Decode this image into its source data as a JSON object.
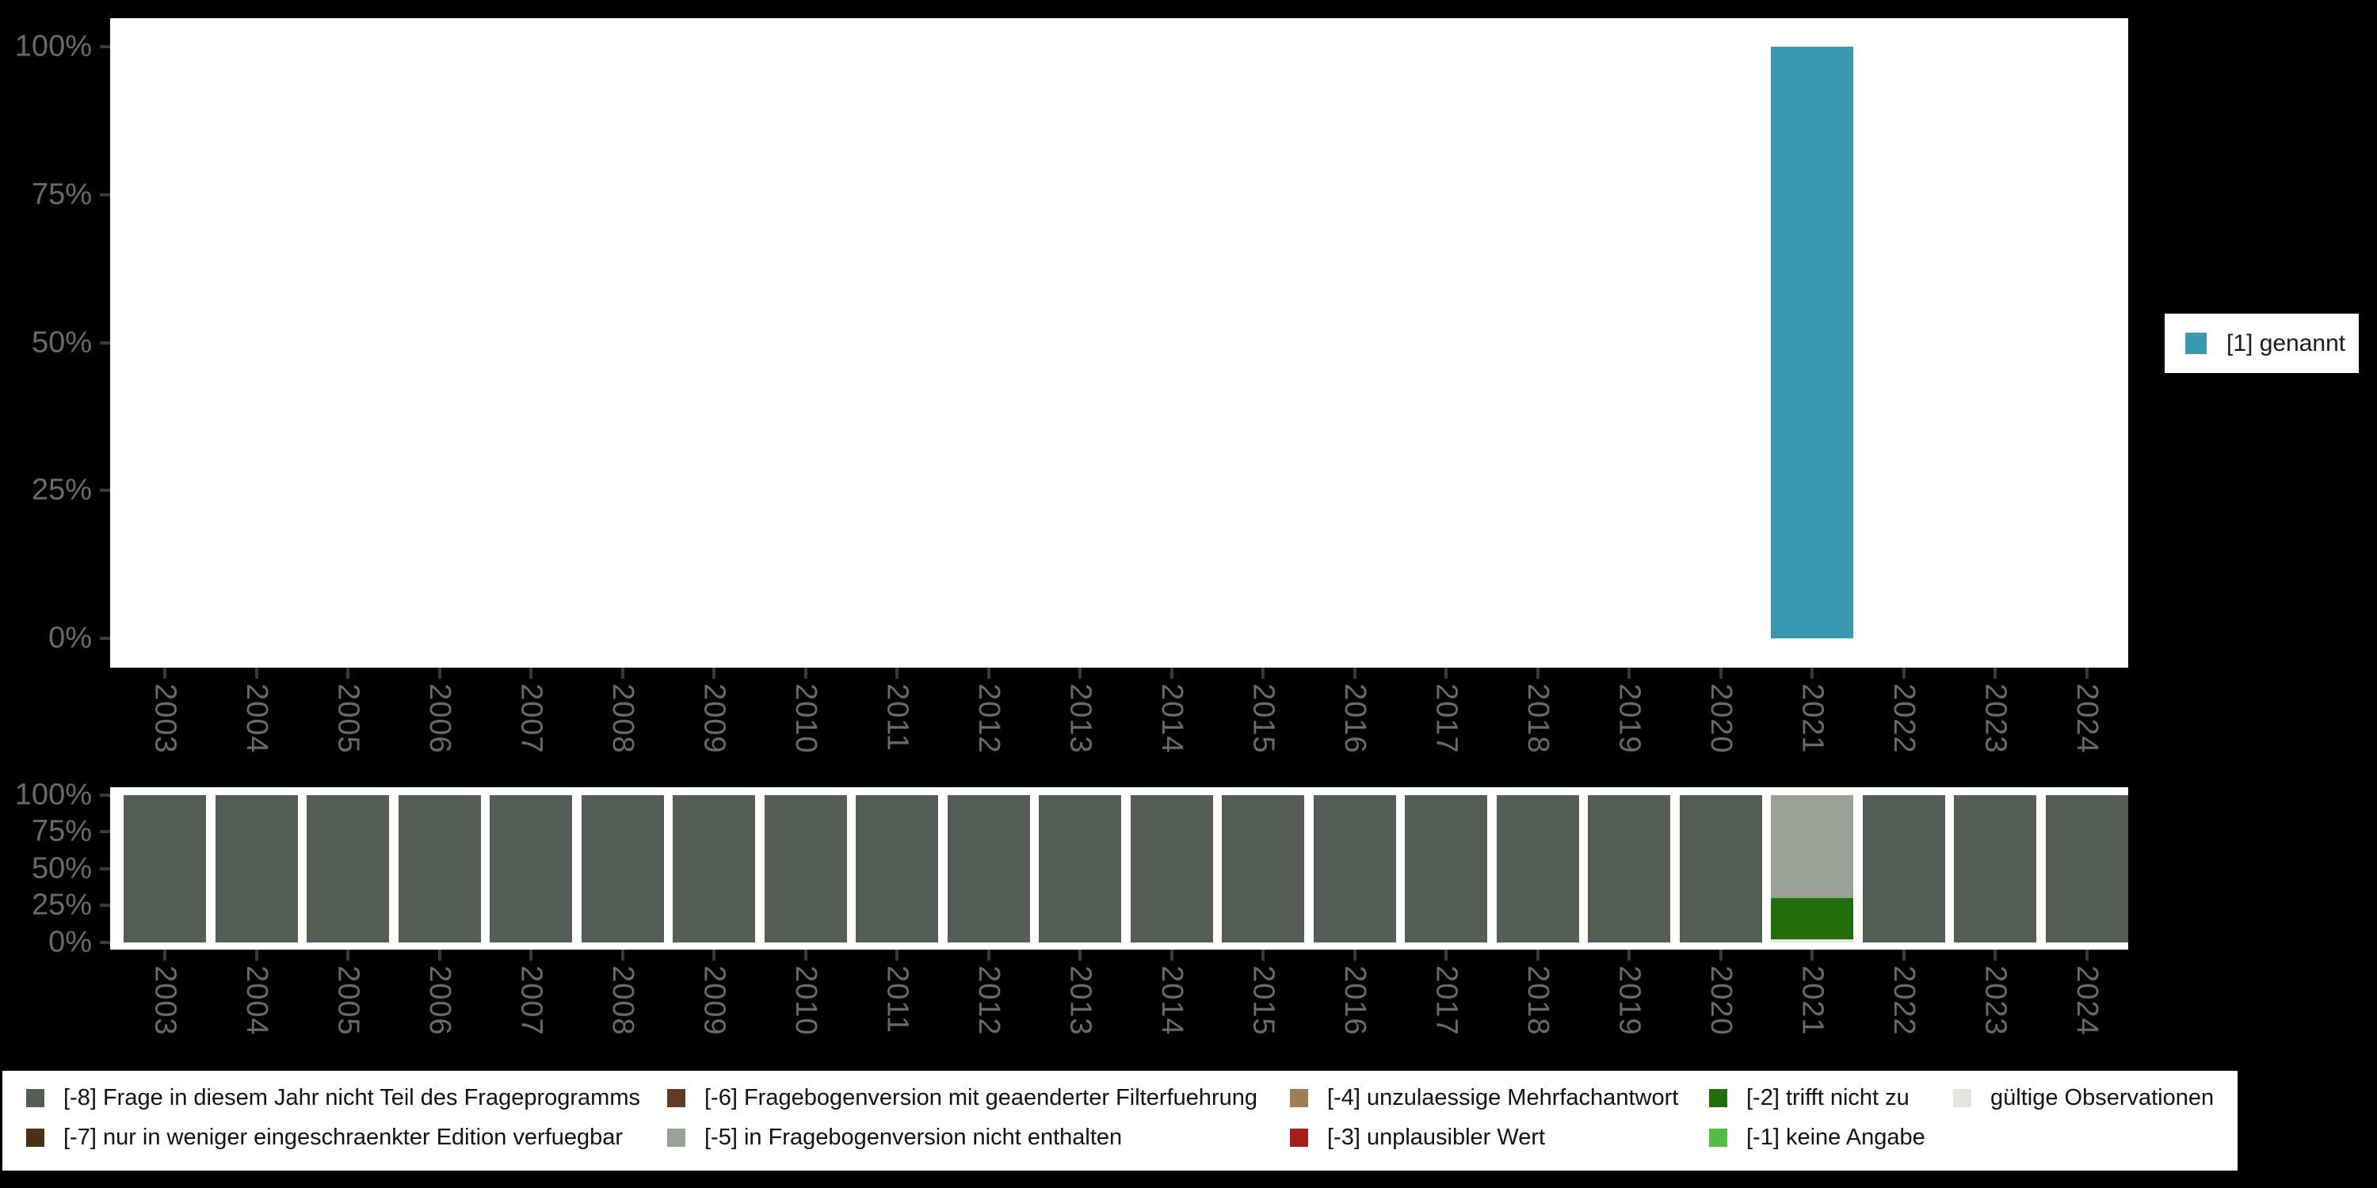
{
  "app": {
    "background": "#000000",
    "panel_bg": "#FFFFFF"
  },
  "axis": {
    "text_color": "#6a6a6a",
    "tick_color": "#3a3a3a"
  },
  "right_legend": {
    "label": "[1] genannt",
    "swatch_color": "#3A99B1"
  },
  "chart_data": [
    {
      "type": "bar",
      "name": "frequencies-by-year",
      "stacked": true,
      "title": "",
      "xlabel": "",
      "ylabel": "",
      "ylim": [
        0,
        100
      ],
      "grid": false,
      "legend_position": "right",
      "y_tick_labels": [
        "100%",
        "75%",
        "50%",
        "25%",
        "0%"
      ],
      "y_tick_percents": [
        100,
        75,
        50,
        25,
        0
      ],
      "categories": [
        "2003",
        "2004",
        "2005",
        "2006",
        "2007",
        "2008",
        "2009",
        "2010",
        "2011",
        "2012",
        "2013",
        "2014",
        "2015",
        "2016",
        "2017",
        "2018",
        "2019",
        "2020",
        "2021",
        "2022",
        "2023",
        "2024"
      ],
      "series": [
        {
          "name": "[1] genannt",
          "color": "#3A99B1",
          "values": [
            0,
            0,
            0,
            0,
            0,
            0,
            0,
            0,
            0,
            0,
            0,
            0,
            0,
            0,
            0,
            0,
            0,
            0,
            100,
            0,
            0,
            0
          ]
        }
      ]
    },
    {
      "type": "bar",
      "name": "missings-by-year",
      "stacked": true,
      "title": "",
      "xlabel": "",
      "ylabel": "",
      "ylim": [
        0,
        100
      ],
      "grid": false,
      "legend_position": "bottom",
      "y_tick_labels": [
        "100%",
        "75%",
        "50%",
        "25%",
        "0%"
      ],
      "y_tick_percents": [
        100,
        75,
        50,
        25,
        0
      ],
      "categories": [
        "2003",
        "2004",
        "2005",
        "2006",
        "2007",
        "2008",
        "2009",
        "2010",
        "2011",
        "2012",
        "2013",
        "2014",
        "2015",
        "2016",
        "2017",
        "2018",
        "2019",
        "2020",
        "2021",
        "2022",
        "2023",
        "2024"
      ],
      "series": [
        {
          "name": "gültige Observationen",
          "color": "#E2E5E0",
          "values": [
            0,
            0,
            0,
            0,
            0,
            0,
            0,
            0,
            0,
            0,
            0,
            0,
            0,
            0,
            0,
            0,
            0,
            0,
            2,
            0,
            0,
            0
          ]
        },
        {
          "name": "[-2] trifft nicht zu",
          "color": "#226E0F",
          "values": [
            0,
            0,
            0,
            0,
            0,
            0,
            0,
            0,
            0,
            0,
            0,
            0,
            0,
            0,
            0,
            0,
            0,
            0,
            28,
            0,
            0,
            0
          ]
        },
        {
          "name": "[-5] in Fragebogenversion nicht enthalten",
          "color": "#9AA096",
          "values": [
            0,
            0,
            0,
            0,
            0,
            0,
            0,
            0,
            0,
            0,
            0,
            0,
            0,
            0,
            0,
            0,
            0,
            0,
            70,
            0,
            0,
            0
          ]
        },
        {
          "name": "[-8] Frage in diesem Jahr nicht Teil des Frageprogramms",
          "color": "#565D56",
          "values": [
            100,
            100,
            100,
            100,
            100,
            100,
            100,
            100,
            100,
            100,
            100,
            100,
            100,
            100,
            100,
            100,
            100,
            100,
            0,
            100,
            100,
            100
          ]
        }
      ]
    }
  ],
  "bottom_legend": {
    "items": [
      {
        "label": "[-8] Frage in diesem Jahr nicht Teil des Frageprogramms",
        "color": "#565D56"
      },
      {
        "label": "[-7] nur in weniger eingeschraenkter Edition verfuegbar",
        "color": "#4B3016"
      },
      {
        "label": "[-6] Fragebogenversion mit geaenderter Filterfuehrung",
        "color": "#5E3B20"
      },
      {
        "label": "[-5] in Fragebogenversion nicht enthalten",
        "color": "#9AA096"
      },
      {
        "label": "[-4] unzulaessige Mehrfachantwort",
        "color": "#9E7E54"
      },
      {
        "label": "[-3] unplausibler Wert",
        "color": "#A6201A"
      },
      {
        "label": "[-2] trifft nicht zu",
        "color": "#226E0F"
      },
      {
        "label": "[-1] keine Angabe",
        "color": "#56BB45"
      },
      {
        "label": "gültige Observationen",
        "color": "#E2E5E0"
      }
    ]
  }
}
